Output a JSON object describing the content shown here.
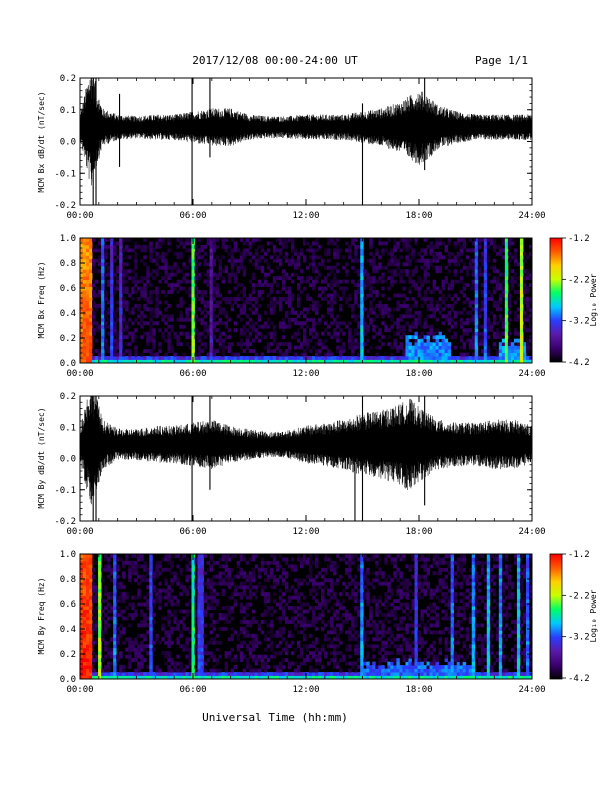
{
  "header": {
    "title": "2017/12/08  00:00-24:00 UT",
    "page": "Page 1/1"
  },
  "footer": {
    "xlabel": "Universal Time (hh:mm)"
  },
  "colorscale": {
    "label": "Log₁₀ Power",
    "ticks": [
      "-1.2",
      "-2.2",
      "-3.2",
      "-4.2"
    ],
    "colors": [
      "#000000",
      "#3a006e",
      "#5a1aa8",
      "#2a3cff",
      "#00c8ff",
      "#00ff66",
      "#c8ff00",
      "#ffd000",
      "#ff5a00",
      "#ff0000"
    ]
  },
  "chart_data": [
    {
      "type": "line",
      "ylabel": "MCM Bx dB/dt (nT/sec)",
      "ylim": [
        -0.2,
        0.2
      ],
      "yticks": [
        "0.2",
        "0.1",
        "0.0",
        "-0.1",
        "-0.2"
      ],
      "xticks": [
        "00:00",
        "06:00",
        "12:00",
        "18:00",
        "24:00"
      ],
      "xlim_hours": [
        0,
        24
      ],
      "x_hours": [
        0.0,
        0.3,
        0.6,
        0.9,
        1.2,
        2.0,
        3.0,
        4.0,
        5.0,
        6.0,
        7.0,
        8.0,
        9.0,
        10.0,
        11.0,
        12.0,
        13.0,
        14.0,
        15.0,
        16.0,
        17.0,
        17.5,
        18.0,
        18.5,
        19.0,
        20.0,
        21.0,
        22.0,
        23.0,
        24.0
      ],
      "envelope_y": [
        0.04,
        0.12,
        0.2,
        0.12,
        0.06,
        0.04,
        0.035,
        0.04,
        0.04,
        0.05,
        0.06,
        0.06,
        0.04,
        0.035,
        0.035,
        0.04,
        0.04,
        0.04,
        0.05,
        0.06,
        0.08,
        0.1,
        0.12,
        0.1,
        0.07,
        0.05,
        0.04,
        0.04,
        0.04,
        0.04
      ],
      "spikes": [
        {
          "x": 0.7,
          "lo": -0.2,
          "hi": 0.2
        },
        {
          "x": 0.85,
          "lo": -0.2,
          "hi": 0.2
        },
        {
          "x": 2.1,
          "lo": -0.08,
          "hi": 0.15
        },
        {
          "x": 5.95,
          "lo": -0.2,
          "hi": 0.2
        },
        {
          "x": 6.9,
          "lo": -0.05,
          "hi": 0.2
        },
        {
          "x": 15.0,
          "lo": -0.2,
          "hi": 0.12
        },
        {
          "x": 18.3,
          "lo": -0.09,
          "hi": 0.2
        }
      ]
    },
    {
      "type": "heatmap",
      "ylabel": "MCM Bx Freq (Hz)",
      "ylim": [
        0.0,
        1.0
      ],
      "yticks": [
        "1.0",
        "0.8",
        "0.6",
        "0.4",
        "0.2",
        "0.0"
      ],
      "xticks": [
        "00:00",
        "06:00",
        "12:00",
        "18:00",
        "24:00"
      ],
      "xlim_hours": [
        0,
        24
      ],
      "zlim": [
        -4.2,
        -1.2
      ],
      "lines": [
        {
          "x": 0.35,
          "w": 0.7,
          "p": -1.5
        },
        {
          "x": 1.2,
          "w": 0.06,
          "p": -3.0
        },
        {
          "x": 1.7,
          "w": 0.05,
          "p": -3.2
        },
        {
          "x": 2.1,
          "w": 0.05,
          "p": -3.3
        },
        {
          "x": 5.97,
          "w": 0.08,
          "p": -2.3
        },
        {
          "x": 6.9,
          "w": 0.05,
          "p": -3.5
        },
        {
          "x": 15.0,
          "w": 0.07,
          "p": -2.8
        },
        {
          "x": 21.1,
          "w": 0.08,
          "p": -3.0
        },
        {
          "x": 21.5,
          "w": 0.06,
          "p": -3.1
        },
        {
          "x": 22.6,
          "w": 0.06,
          "p": -2.4
        },
        {
          "x": 23.5,
          "w": 0.07,
          "p": -2.1
        }
      ],
      "events": [
        {
          "x": 18.5,
          "w": 2.5,
          "f": 0.2,
          "p": -3.2
        },
        {
          "x": 23.0,
          "w": 1.5,
          "f": 0.15,
          "p": -3.2
        }
      ]
    },
    {
      "type": "line",
      "ylabel": "MCM By dB/dt (nT/sec)",
      "ylim": [
        -0.2,
        0.2
      ],
      "yticks": [
        "0.2",
        "0.1",
        "0.0",
        "-0.1",
        "-0.2"
      ],
      "xticks": [
        "00:00",
        "06:00",
        "12:00",
        "18:00",
        "24:00"
      ],
      "xlim_hours": [
        0,
        24
      ],
      "x_hours": [
        0.0,
        0.3,
        0.6,
        0.9,
        1.2,
        2.0,
        3.0,
        4.0,
        5.0,
        6.0,
        7.0,
        8.0,
        9.0,
        10.0,
        11.0,
        12.0,
        13.0,
        14.0,
        15.0,
        16.0,
        17.0,
        17.5,
        18.0,
        18.5,
        19.0,
        20.0,
        21.0,
        22.0,
        23.0,
        24.0
      ],
      "envelope_y": [
        0.05,
        0.14,
        0.2,
        0.15,
        0.08,
        0.05,
        0.05,
        0.06,
        0.06,
        0.07,
        0.08,
        0.06,
        0.05,
        0.04,
        0.045,
        0.06,
        0.07,
        0.08,
        0.1,
        0.11,
        0.13,
        0.15,
        0.12,
        0.1,
        0.08,
        0.07,
        0.07,
        0.08,
        0.08,
        0.06
      ],
      "spikes": [
        {
          "x": 0.7,
          "lo": -0.2,
          "hi": 0.2
        },
        {
          "x": 0.85,
          "lo": -0.2,
          "hi": 0.2
        },
        {
          "x": 5.95,
          "lo": -0.2,
          "hi": 0.2
        },
        {
          "x": 6.9,
          "lo": -0.1,
          "hi": 0.2
        },
        {
          "x": 14.6,
          "lo": -0.2,
          "hi": 0.1
        },
        {
          "x": 15.0,
          "lo": -0.2,
          "hi": 0.2
        },
        {
          "x": 18.3,
          "lo": -0.15,
          "hi": 0.2
        }
      ]
    },
    {
      "type": "heatmap",
      "ylabel": "MCM By Freq (Hz)",
      "ylim": [
        0.0,
        1.0
      ],
      "yticks": [
        "1.0",
        "0.8",
        "0.6",
        "0.4",
        "0.2",
        "0.0"
      ],
      "xticks": [
        "00:00",
        "06:00",
        "12:00",
        "18:00",
        "24:00"
      ],
      "xlim_hours": [
        0,
        24
      ],
      "zlim": [
        -4.2,
        -1.2
      ],
      "lines": [
        {
          "x": 0.35,
          "w": 0.7,
          "p": -1.3
        },
        {
          "x": 1.0,
          "w": 0.08,
          "p": -2.2
        },
        {
          "x": 1.8,
          "w": 0.06,
          "p": -3.0
        },
        {
          "x": 3.7,
          "w": 0.1,
          "p": -3.1
        },
        {
          "x": 5.97,
          "w": 0.1,
          "p": -2.5
        },
        {
          "x": 6.4,
          "w": 0.4,
          "p": -3.2
        },
        {
          "x": 10.4,
          "w": 0.1,
          "p": -3.2
        },
        {
          "x": 14.4,
          "w": 0.08,
          "p": -3.2
        },
        {
          "x": 15.0,
          "w": 0.08,
          "p": -2.9
        },
        {
          "x": 17.9,
          "w": 0.15,
          "p": -3.2
        },
        {
          "x": 19.8,
          "w": 0.1,
          "p": -3.0
        },
        {
          "x": 20.9,
          "w": 0.1,
          "p": -2.9
        },
        {
          "x": 21.6,
          "w": 0.08,
          "p": -2.8
        },
        {
          "x": 22.4,
          "w": 0.08,
          "p": -2.9
        },
        {
          "x": 23.3,
          "w": 0.1,
          "p": -2.8
        },
        {
          "x": 23.8,
          "w": 0.08,
          "p": -3.0
        }
      ],
      "events": [
        {
          "x": 18.0,
          "w": 6.0,
          "f": 0.12,
          "p": -3.3
        }
      ]
    }
  ]
}
